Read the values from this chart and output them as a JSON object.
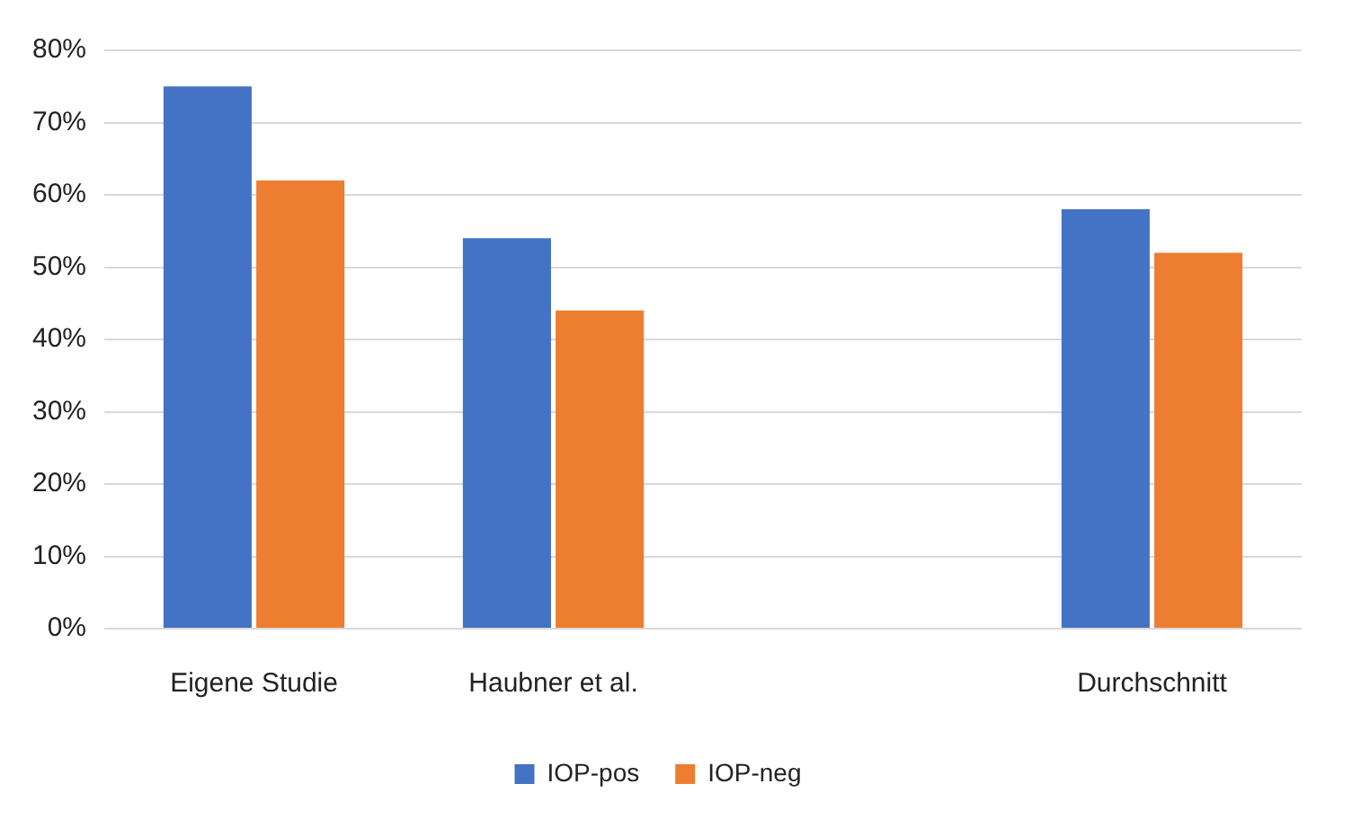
{
  "chart_data": {
    "type": "bar",
    "categories": [
      "Eigene Studie",
      "Haubner et al.",
      null,
      "Durchschnitt"
    ],
    "series": [
      {
        "name": "IOP-pos",
        "color": "#4472c4",
        "values": [
          75,
          54,
          null,
          58
        ]
      },
      {
        "name": "IOP-neg",
        "color": "#ed7d31",
        "values": [
          62,
          44,
          null,
          52
        ]
      }
    ],
    "ylim": [
      0,
      80
    ],
    "yticks": [
      {
        "value": 0,
        "label": "0%"
      },
      {
        "value": 10,
        "label": "10%"
      },
      {
        "value": 20,
        "label": "20%"
      },
      {
        "value": 30,
        "label": "30%"
      },
      {
        "value": 40,
        "label": "40%"
      },
      {
        "value": 50,
        "label": "50%"
      },
      {
        "value": 60,
        "label": "60%"
      },
      {
        "value": 70,
        "label": "70%"
      },
      {
        "value": 80,
        "label": "80%"
      }
    ],
    "grid": "y",
    "legend": "bottom"
  }
}
